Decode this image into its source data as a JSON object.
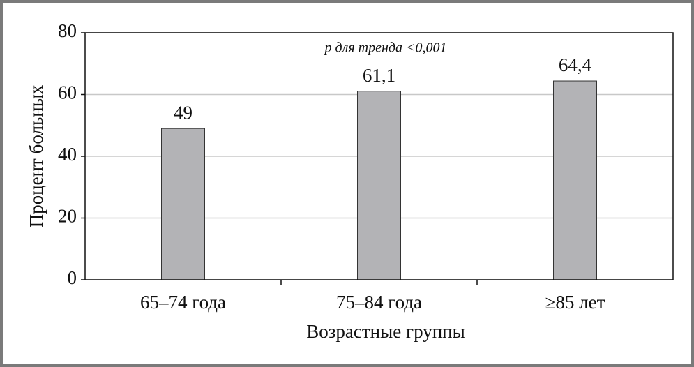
{
  "chart_data": {
    "type": "bar",
    "categories": [
      "65–74 года",
      "75–84 года",
      "≥85 лет"
    ],
    "values": [
      49,
      61.1,
      64.4
    ],
    "value_labels": [
      "49",
      "61,1",
      "64,4"
    ],
    "color": "#b3b3b6",
    "ylim": [
      0,
      80
    ],
    "yticks": [
      0,
      20,
      40,
      60,
      80
    ],
    "grid": true,
    "x_label": "Возрастные группы",
    "y_label": "Процент больных",
    "annotation": "p для тренда <0,001"
  }
}
